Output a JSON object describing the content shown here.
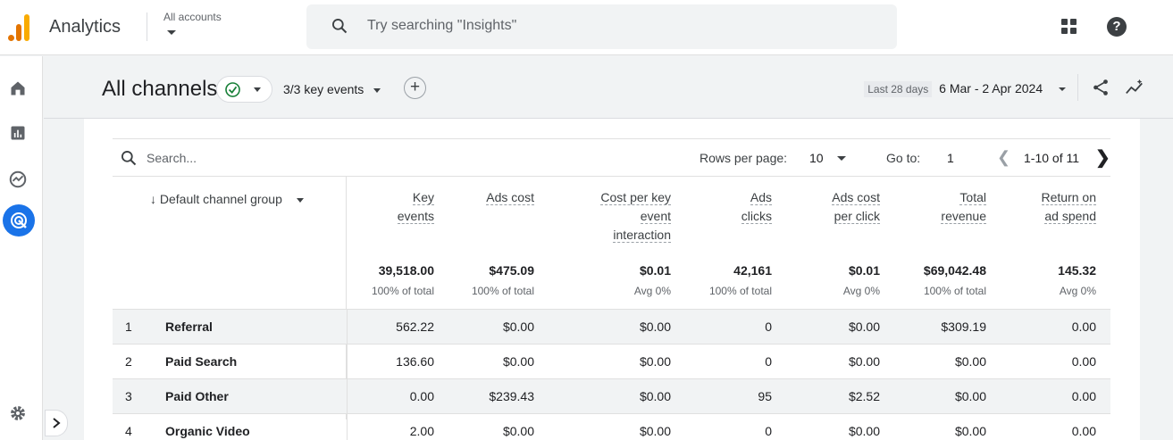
{
  "app": {
    "name": "Analytics",
    "account_selector": "All accounts"
  },
  "search": {
    "placeholder": "Try searching \"Insights\""
  },
  "rail": {
    "items": [
      "home-icon",
      "reports-icon",
      "explore-icon",
      "advertising-icon"
    ],
    "active": "advertising-icon",
    "settings": "gear-icon"
  },
  "header": {
    "title": "All channels",
    "key_events": "3/3 key events",
    "date_label": "Last 28 days",
    "date_range": "6 Mar - 2 Apr 2024"
  },
  "table": {
    "search_placeholder": "Search...",
    "rows_per_page_label": "Rows per page:",
    "rows_per_page_value": "10",
    "goto_label": "Go to:",
    "goto_value": "1",
    "range": "1-10 of 11",
    "dimension": "Default channel group",
    "columns": [
      {
        "lines": [
          "Key",
          "events"
        ],
        "total": "39,518.00",
        "sub": "100% of total"
      },
      {
        "lines": [
          "Ads cost"
        ],
        "total": "$475.09",
        "sub": "100% of total"
      },
      {
        "lines": [
          "Cost per key",
          "event",
          "interaction"
        ],
        "total": "$0.01",
        "sub": "Avg 0%"
      },
      {
        "lines": [
          "Ads",
          "clicks"
        ],
        "total": "42,161",
        "sub": "100% of total"
      },
      {
        "lines": [
          "Ads cost",
          "per click"
        ],
        "total": "$0.01",
        "sub": "Avg 0%"
      },
      {
        "lines": [
          "Total",
          "revenue"
        ],
        "total": "$69,042.48",
        "sub": "100% of total"
      },
      {
        "lines": [
          "Return on",
          "ad spend"
        ],
        "total": "145.32",
        "sub": "Avg 0%"
      }
    ],
    "rows": [
      {
        "n": "1",
        "name": "Referral",
        "values": [
          "562.22",
          "$0.00",
          "$0.00",
          "0",
          "$0.00",
          "$309.19",
          "0.00"
        ]
      },
      {
        "n": "2",
        "name": "Paid Search",
        "values": [
          "136.60",
          "$0.00",
          "$0.00",
          "0",
          "$0.00",
          "$0.00",
          "0.00"
        ]
      },
      {
        "n": "3",
        "name": "Paid Other",
        "values": [
          "0.00",
          "$239.43",
          "$0.00",
          "95",
          "$2.52",
          "$0.00",
          "0.00"
        ]
      },
      {
        "n": "4",
        "name": "Organic Video",
        "values": [
          "2.00",
          "$0.00",
          "$0.00",
          "0",
          "$0.00",
          "$0.00",
          "0.00"
        ]
      }
    ]
  },
  "colors": {
    "accent": "#1a73e8",
    "logo_orange": "#e37400",
    "logo_yellow": "#f9ab00",
    "check_green": "#188038"
  }
}
